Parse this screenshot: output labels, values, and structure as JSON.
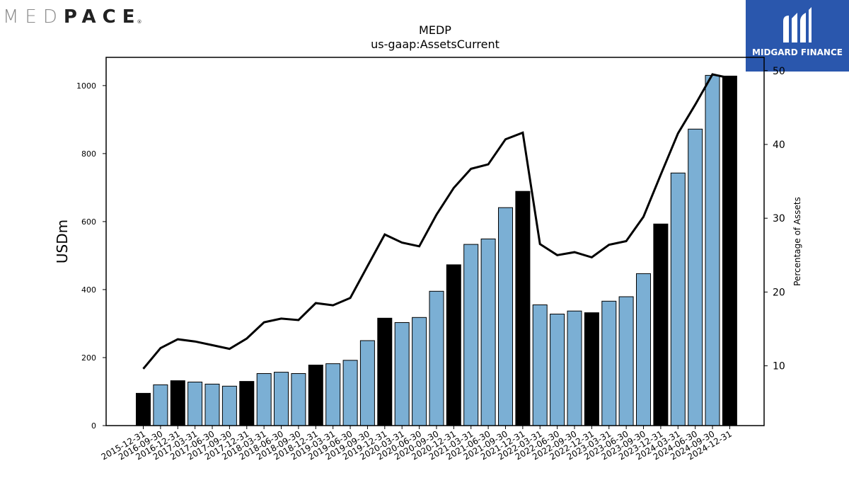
{
  "header": {
    "brand_left_light": "MED",
    "brand_left_bold": "PACE",
    "brand_left_mark": "®",
    "brand_right": "MIDGARD FINANCE"
  },
  "colors": {
    "bar_quarter": "#7bafd4",
    "bar_year_end": "#000000",
    "line": "#000000",
    "logo_right_bg": "#2a57ad",
    "logo_accent": "#59c69a"
  },
  "chart_data": {
    "type": "bar",
    "title": "MEDP",
    "subtitle": "us-gaap:AssetsCurrent",
    "ylabel": "USDm",
    "y2label": "Percentage of Assets",
    "ylim": [
      0,
      1083
    ],
    "y2lim": [
      1.9,
      51.8
    ],
    "yticks": [
      "0",
      "200",
      "400",
      "600",
      "800",
      "1000"
    ],
    "y2ticks": [
      "10",
      "20",
      "30",
      "40",
      "50"
    ],
    "categories": [
      "2015-12-31",
      "2016-09-30",
      "2016-12-31",
      "2017-03-31",
      "2017-06-30",
      "2017-09-30",
      "2017-12-31",
      "2018-03-31",
      "2018-06-30",
      "2018-09-30",
      "2018-12-31",
      "2019-03-31",
      "2019-06-30",
      "2019-09-30",
      "2019-12-31",
      "2020-03-31",
      "2020-06-30",
      "2020-09-30",
      "2020-12-31",
      "2021-03-31",
      "2021-06-30",
      "2021-09-30",
      "2021-12-31",
      "2022-03-31",
      "2022-06-30",
      "2022-09-30",
      "2022-12-31",
      "2023-03-31",
      "2023-06-30",
      "2023-09-30",
      "2023-12-31",
      "2024-03-31",
      "2024-06-30",
      "2024-09-30",
      "2024-12-31"
    ],
    "values": [
      95,
      120,
      132,
      128,
      122,
      116,
      130,
      153,
      157,
      153,
      178,
      182,
      192,
      250,
      316,
      303,
      318,
      395,
      473,
      533,
      549,
      641,
      689,
      355,
      328,
      337,
      332,
      366,
      379,
      447,
      593,
      743,
      872,
      1030,
      1028
    ],
    "year_end": [
      true,
      false,
      true,
      false,
      false,
      false,
      true,
      false,
      false,
      false,
      true,
      false,
      false,
      false,
      true,
      false,
      false,
      false,
      true,
      false,
      false,
      false,
      true,
      false,
      false,
      false,
      true,
      false,
      false,
      false,
      true,
      false,
      false,
      false,
      true
    ],
    "series": [
      {
        "name": "",
        "type": "bar",
        "axis": "left"
      },
      {
        "name": "",
        "type": "line",
        "axis": "right",
        "values": [
          9.6,
          12.4,
          13.6,
          13.3,
          12.8,
          12.3,
          13.7,
          15.9,
          16.4,
          16.2,
          18.5,
          18.2,
          19.2,
          23.5,
          27.8,
          26.7,
          26.2,
          30.5,
          34.1,
          36.7,
          37.3,
          40.7,
          41.6,
          26.5,
          25.0,
          25.4,
          24.7,
          26.4,
          26.9,
          30.2,
          35.9,
          41.5,
          45.4,
          49.5,
          49.0
        ]
      }
    ],
    "grid": false,
    "legend": "none"
  }
}
